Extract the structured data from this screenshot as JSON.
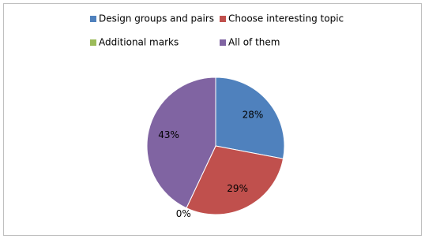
{
  "chart_data": {
    "type": "pie",
    "categories": [
      "Design groups and pairs",
      "Choose interesting topic",
      "Additional marks",
      "All of them"
    ],
    "values": [
      28,
      29,
      0,
      43
    ],
    "value_labels": [
      "28%",
      "29%",
      "0%",
      "43%"
    ],
    "colors": [
      "#4f81bd",
      "#c0504d",
      "#9bbb59",
      "#8064a2"
    ],
    "legend": "top"
  }
}
